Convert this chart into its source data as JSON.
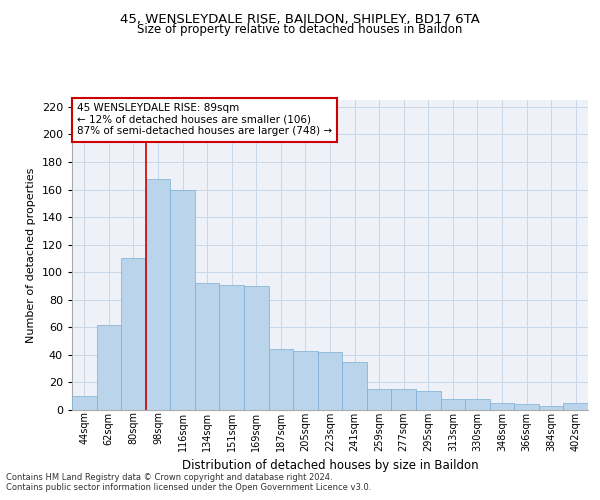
{
  "title1": "45, WENSLEYDALE RISE, BAILDON, SHIPLEY, BD17 6TA",
  "title2": "Size of property relative to detached houses in Baildon",
  "xlabel": "Distribution of detached houses by size in Baildon",
  "ylabel": "Number of detached properties",
  "categories": [
    "44sqm",
    "62sqm",
    "80sqm",
    "98sqm",
    "116sqm",
    "134sqm",
    "151sqm",
    "169sqm",
    "187sqm",
    "205sqm",
    "223sqm",
    "241sqm",
    "259sqm",
    "277sqm",
    "295sqm",
    "313sqm",
    "330sqm",
    "348sqm",
    "366sqm",
    "384sqm",
    "402sqm"
  ],
  "values": [
    10,
    62,
    110,
    168,
    160,
    92,
    91,
    90,
    44,
    43,
    42,
    35,
    15,
    15,
    14,
    8,
    8,
    5,
    4,
    3,
    5
  ],
  "bar_color": "#bad4eb",
  "bar_edge_color": "#7aadd4",
  "grid_color": "#c8d8e8",
  "background_color": "#eef2f8",
  "vline_color": "#cc0000",
  "annotation_line1": "45 WENSLEYDALE RISE: 89sqm",
  "annotation_line2": "← 12% of detached houses are smaller (106)",
  "annotation_line3": "87% of semi-detached houses are larger (748) →",
  "annotation_box_color": "#ffffff",
  "annotation_box_edge": "#cc0000",
  "ylim": [
    0,
    225
  ],
  "yticks": [
    0,
    20,
    40,
    60,
    80,
    100,
    120,
    140,
    160,
    180,
    200,
    220
  ],
  "footnote1": "Contains HM Land Registry data © Crown copyright and database right 2024.",
  "footnote2": "Contains public sector information licensed under the Open Government Licence v3.0."
}
